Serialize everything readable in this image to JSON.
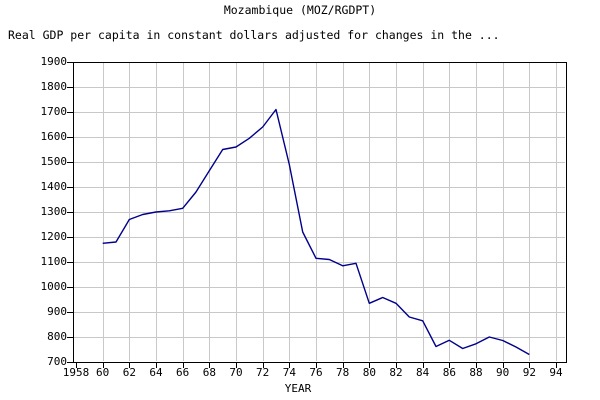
{
  "chart_data": {
    "type": "line",
    "title": "Mozambique (MOZ/RGDPT)",
    "subtitle": "Real GDP per capita in constant dollars adjusted for changes in the ...",
    "xlabel": "YEAR",
    "ylabel": "",
    "xlim": [
      1958,
      1994.8
    ],
    "ylim": [
      700,
      1900
    ],
    "grid": true,
    "legend": "none",
    "colors": {
      "line": "#00008b",
      "grid": "#c8c8c8",
      "frame": "#000000",
      "background": "#ffffff",
      "text": "#000000"
    },
    "series_name": "Real GDP per capita",
    "x": [
      1960,
      1961,
      1962,
      1963,
      1964,
      1965,
      1966,
      1967,
      1968,
      1969,
      1970,
      1971,
      1972,
      1973,
      1974,
      1975,
      1976,
      1977,
      1978,
      1979,
      1980,
      1981,
      1982,
      1983,
      1984,
      1985,
      1986,
      1987,
      1988,
      1989,
      1990,
      1991,
      1992
    ],
    "values": [
      1175,
      1180,
      1270,
      1290,
      1300,
      1305,
      1315,
      1380,
      1465,
      1550,
      1560,
      1595,
      1640,
      1710,
      1490,
      1220,
      1115,
      1110,
      1085,
      1095,
      935,
      958,
      935,
      880,
      865,
      762,
      787,
      754,
      773,
      800,
      786,
      760,
      730
    ],
    "xtick_years": [
      1958,
      1960,
      1962,
      1964,
      1966,
      1968,
      1970,
      1972,
      1974,
      1976,
      1978,
      1980,
      1982,
      1984,
      1986,
      1988,
      1990,
      1992,
      1994
    ],
    "xtick_labels": [
      "1958",
      "60",
      "62",
      "64",
      "66",
      "68",
      "70",
      "72",
      "74",
      "76",
      "78",
      "80",
      "82",
      "84",
      "86",
      "88",
      "90",
      "92",
      "94"
    ],
    "ytick_values": [
      700,
      800,
      900,
      1000,
      1100,
      1200,
      1300,
      1400,
      1500,
      1600,
      1700,
      1800,
      1900
    ],
    "ytick_labels": [
      "700",
      "800",
      "900",
      "1000",
      "1100",
      "1200",
      "1300",
      "1400",
      "1500",
      "1600",
      "1700",
      "1800",
      "1900"
    ]
  }
}
